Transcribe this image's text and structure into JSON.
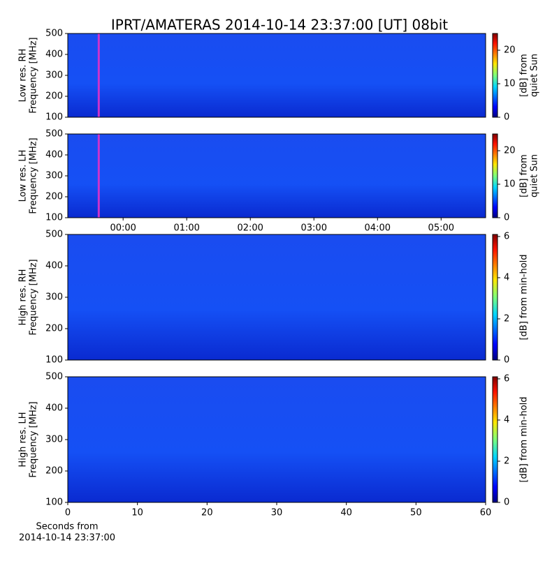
{
  "title": "IPRT/AMATERAS 2014-10-14 23:37:00 [UT]   08bit",
  "chart_data": [
    {
      "type": "heatmap",
      "ylabel": [
        "Low res. RH",
        "Frequency [MHz]"
      ],
      "ylim": [
        100,
        500
      ],
      "yticks": [
        100,
        200,
        300,
        400,
        500
      ],
      "xlim": [
        -0.87,
        5.7
      ],
      "marker": {
        "x": -0.383,
        "color": "#cc33cc"
      },
      "colorbar": {
        "label": [
          "[dB] from",
          "quiet Sun"
        ],
        "lim": [
          0,
          25
        ],
        "ticks": [
          0,
          10,
          20
        ]
      }
    },
    {
      "type": "heatmap",
      "ylabel": [
        "Low res. LH",
        "Frequency [MHz]"
      ],
      "ylim": [
        100,
        500
      ],
      "yticks": [
        100,
        200,
        300,
        400,
        500
      ],
      "xlim": [
        -0.87,
        5.7
      ],
      "marker": {
        "x": -0.383,
        "color": "#cc33cc"
      },
      "xticks": [
        {
          "value": 0,
          "label": "00:00"
        },
        {
          "value": 1,
          "label": "01:00"
        },
        {
          "value": 2,
          "label": "02:00"
        },
        {
          "value": 3,
          "label": "03:00"
        },
        {
          "value": 4,
          "label": "04:00"
        },
        {
          "value": 5,
          "label": "05:00"
        }
      ],
      "colorbar": {
        "label": [
          "[dB] from",
          "quiet Sun"
        ],
        "lim": [
          0,
          25
        ],
        "ticks": [
          0,
          10,
          20
        ]
      }
    },
    {
      "type": "heatmap",
      "ylabel": [
        "High res. RH",
        "Frequency [MHz]"
      ],
      "ylim": [
        100,
        500
      ],
      "yticks": [
        100,
        200,
        300,
        400,
        500
      ],
      "xlim": [
        0,
        60
      ],
      "colorbar": {
        "label": [
          "[dB] from min-hold"
        ],
        "lim": [
          0,
          6.1
        ],
        "ticks": [
          0,
          2,
          4,
          6
        ]
      }
    },
    {
      "type": "heatmap",
      "ylabel": [
        "High res. LH",
        "Frequency [MHz]"
      ],
      "ylim": [
        100,
        500
      ],
      "yticks": [
        100,
        200,
        300,
        400,
        500
      ],
      "xlim": [
        0,
        60
      ],
      "xticks": [
        0,
        10,
        20,
        30,
        40,
        50,
        60
      ],
      "xlabel": [
        "Seconds from",
        "2014-10-14 23:37:00"
      ],
      "colorbar": {
        "label": [
          "[dB] from min-hold"
        ],
        "lim": [
          0,
          6.1
        ],
        "ticks": [
          0,
          2,
          4,
          6
        ]
      }
    }
  ]
}
